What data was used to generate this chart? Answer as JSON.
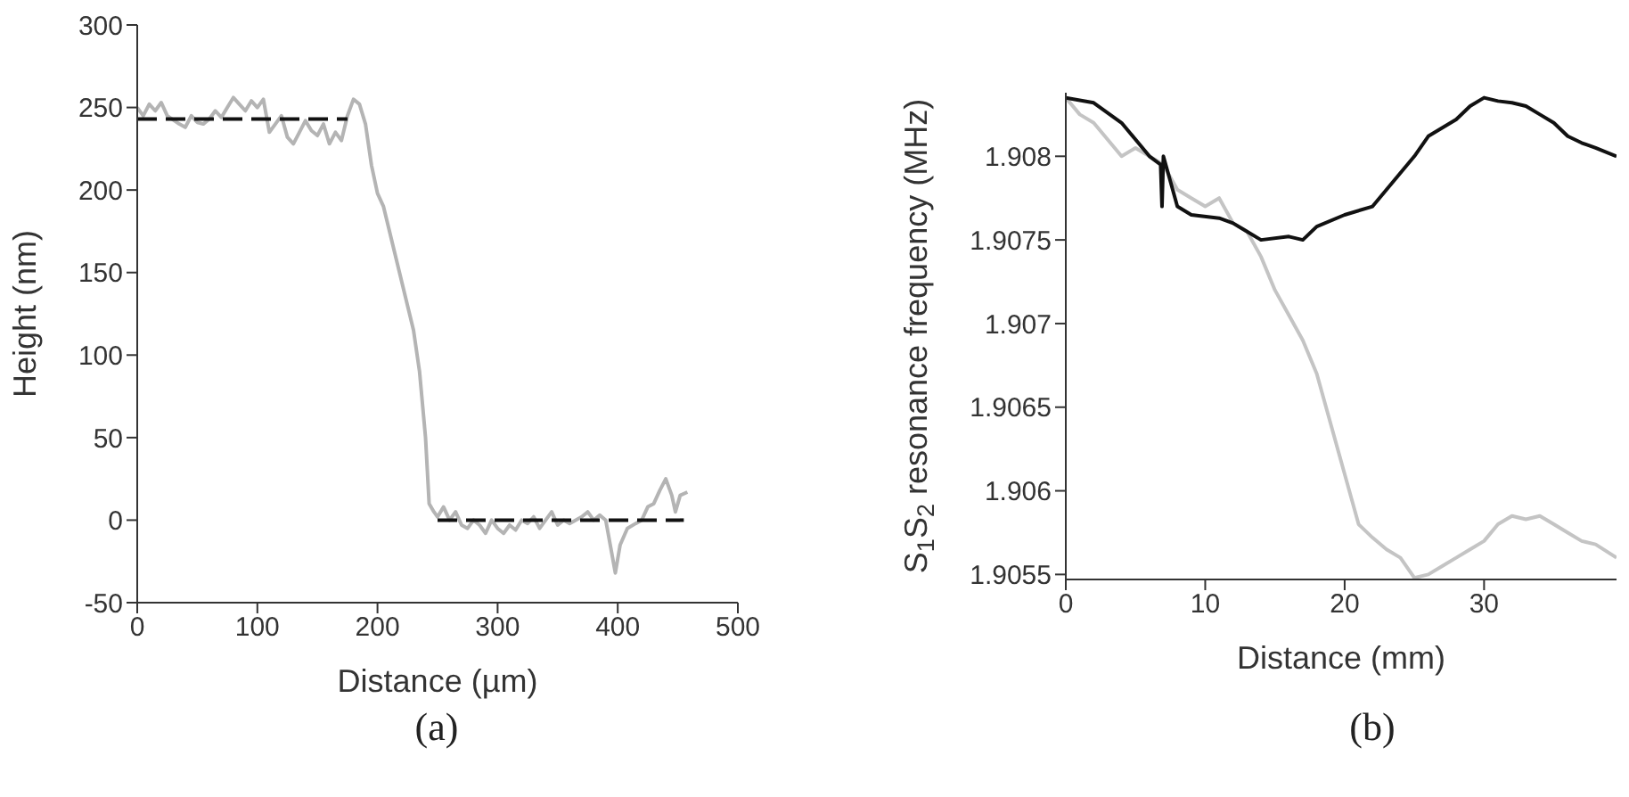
{
  "chart_data": [
    {
      "type": "line",
      "xlabel": "Distance (µm)",
      "ylabel": "Height (nm)",
      "xlim": [
        0,
        500
      ],
      "ylim": [
        -50,
        300
      ],
      "xticks": [
        0,
        100,
        200,
        300,
        400,
        500
      ],
      "yticks": [
        -50,
        0,
        50,
        100,
        150,
        200,
        250,
        300
      ],
      "marker": "none",
      "annotations": [
        "(a)"
      ],
      "series": [
        {
          "color": "#b4b4b4",
          "line_style": "solid",
          "x": [
            0,
            5,
            10,
            15,
            20,
            25,
            35,
            40,
            45,
            50,
            55,
            60,
            65,
            70,
            75,
            80,
            85,
            90,
            95,
            100,
            105,
            110,
            115,
            120,
            125,
            130,
            135,
            140,
            145,
            150,
            155,
            160,
            165,
            170,
            175,
            180,
            185,
            190,
            195,
            200,
            205,
            210,
            215,
            220,
            225,
            230,
            235,
            240,
            243,
            247,
            250,
            255,
            260,
            265,
            270,
            275,
            280,
            285,
            290,
            295,
            300,
            305,
            310,
            315,
            320,
            325,
            330,
            335,
            340,
            345,
            350,
            355,
            360,
            365,
            370,
            375,
            380,
            385,
            390,
            395,
            398,
            402,
            408,
            415,
            420,
            425,
            430,
            435,
            440,
            445,
            448,
            452,
            458
          ],
          "values": [
            250,
            245,
            252,
            248,
            253,
            245,
            240,
            238,
            245,
            241,
            240,
            243,
            248,
            244,
            250,
            256,
            252,
            248,
            254,
            250,
            255,
            235,
            240,
            245,
            232,
            228,
            235,
            242,
            236,
            233,
            240,
            228,
            235,
            230,
            245,
            255,
            252,
            240,
            215,
            198,
            190,
            175,
            160,
            145,
            130,
            115,
            90,
            50,
            10,
            5,
            2,
            8,
            0,
            5,
            -3,
            -5,
            0,
            -3,
            -8,
            0,
            -5,
            -8,
            -3,
            -6,
            0,
            -2,
            2,
            -5,
            0,
            5,
            -3,
            0,
            -2,
            0,
            2,
            5,
            0,
            3,
            0,
            -20,
            -32,
            -15,
            -5,
            -2,
            0,
            8,
            10,
            18,
            25,
            15,
            5,
            15,
            17
          ]
        },
        {
          "color": "#111111",
          "line_style": "dashed",
          "x": [
            0,
            175
          ],
          "values": [
            243,
            243
          ]
        },
        {
          "color": "#111111",
          "line_style": "dashed",
          "x": [
            250,
            455
          ],
          "values": [
            0,
            0
          ]
        }
      ]
    },
    {
      "type": "line",
      "xlabel": "Distance (mm)",
      "ylabel": "S$_{1}$S$_{2}$ resonance frequency (MHz)",
      "xlim": [
        0,
        39.5
      ],
      "ylim": [
        1.90547,
        1.90838
      ],
      "xticks": [
        0,
        10,
        20,
        30
      ],
      "yticks": [
        1.9055,
        1.906,
        1.9065,
        1.907,
        1.9075,
        1.908
      ],
      "marker": "none",
      "annotations": [
        "(b)"
      ],
      "series": [
        {
          "color": "#c4c4c4",
          "line_style": "solid",
          "x": [
            0,
            1,
            2,
            3,
            4,
            5,
            6,
            7,
            8,
            9,
            10,
            11,
            12,
            13,
            14,
            15,
            16,
            17,
            18,
            19,
            20,
            21,
            22,
            23,
            24,
            25,
            26,
            27,
            28,
            29,
            30,
            31,
            32,
            33,
            34,
            35,
            36,
            37,
            38,
            39.5
          ],
          "values": [
            1.90835,
            1.90825,
            1.9082,
            1.9081,
            1.908,
            1.90805,
            1.908,
            1.90795,
            1.9078,
            1.90775,
            1.9077,
            1.90775,
            1.9076,
            1.90755,
            1.9074,
            1.9072,
            1.90705,
            1.9069,
            1.9067,
            1.9064,
            1.9061,
            1.9058,
            1.90572,
            1.90565,
            1.9056,
            1.90548,
            1.9055,
            1.90555,
            1.9056,
            1.90565,
            1.9057,
            1.9058,
            1.90585,
            1.90583,
            1.90585,
            1.9058,
            1.90575,
            1.9057,
            1.90568,
            1.9056
          ]
        },
        {
          "color": "#111111",
          "line_style": "solid",
          "x": [
            0,
            2,
            4,
            6,
            6.8,
            6.9,
            7,
            8,
            9,
            11,
            12,
            13,
            14,
            16,
            17,
            18,
            20,
            22,
            23,
            24,
            25,
            26,
            28,
            29,
            30,
            31,
            32,
            33,
            34,
            35,
            36,
            37,
            38,
            39.5
          ],
          "values": [
            1.90835,
            1.90832,
            1.9082,
            1.908,
            1.90795,
            1.9077,
            1.908,
            1.9077,
            1.90765,
            1.90763,
            1.9076,
            1.90755,
            1.9075,
            1.90752,
            1.9075,
            1.90758,
            1.90765,
            1.9077,
            1.9078,
            1.9079,
            1.908,
            1.90812,
            1.90822,
            1.9083,
            1.90835,
            1.90833,
            1.90832,
            1.9083,
            1.90825,
            1.9082,
            1.90812,
            1.90808,
            1.90805,
            1.908
          ]
        }
      ]
    }
  ]
}
